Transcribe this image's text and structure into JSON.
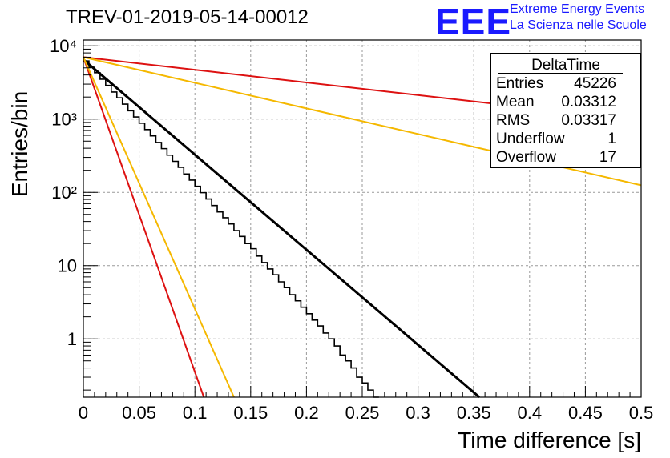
{
  "header": {
    "title": "TREV-01-2019-05-14-00012",
    "logo_text": "EEE",
    "brand_line1": "Extreme Energy Events",
    "brand_line2": "La Scienza nelle Scuole"
  },
  "stats": {
    "name": "DeltaTime",
    "rows": [
      {
        "label": "Entries",
        "value": "45226"
      },
      {
        "label": "Mean",
        "value": "0.03312"
      },
      {
        "label": "RMS",
        "value": "0.03317"
      },
      {
        "label": "Underflow",
        "value": "1"
      },
      {
        "label": "Overflow",
        "value": "17"
      }
    ]
  },
  "chart_data": {
    "type": "line",
    "title": "TREV-01-2019-05-14-00012",
    "xlabel": "Time difference [s]",
    "ylabel": "Entries/bin",
    "xlim": [
      0,
      0.5
    ],
    "ylim": [
      0.16,
      12000
    ],
    "yscale": "log",
    "grid": true,
    "x_ticks": [
      "0",
      "0.05",
      "0.1",
      "0.15",
      "0.2",
      "0.25",
      "0.3",
      "0.35",
      "0.4",
      "0.45",
      "0.5"
    ],
    "y_ticks": [
      {
        "value": 1,
        "label": "1"
      },
      {
        "value": 10,
        "label": "10"
      },
      {
        "value": 100,
        "label": "10²"
      },
      {
        "value": 1000,
        "label": "10³"
      },
      {
        "value": 10000,
        "label": "10⁴"
      }
    ],
    "histogram": {
      "name": "DeltaTime",
      "bin_width": 0.005,
      "x_start": 0,
      "values": [
        6200,
        5100,
        4300,
        3500,
        2880,
        2340,
        1950,
        1600,
        1300,
        1070,
        880,
        720,
        590,
        480,
        395,
        322,
        265,
        220,
        178,
        147,
        121,
        99,
        81,
        66,
        54,
        45,
        37,
        30,
        25,
        20,
        17,
        13.5,
        11,
        9,
        7.5,
        6,
        5,
        4,
        3.3,
        2.7,
        2.2,
        1.8,
        1.5,
        1.2,
        1,
        0.8,
        0.6,
        0.5,
        0.4,
        0.3,
        0.25,
        0.2,
        0.16
      ]
    },
    "series": [
      {
        "color": "#000000",
        "x": [
          0,
          0.355
        ],
        "y": [
          6500,
          0.16
        ]
      },
      {
        "color": "#dd1111",
        "x": [
          0,
          0.5
        ],
        "y": [
          7000,
          960
        ]
      },
      {
        "color": "#f5b800",
        "x": [
          0,
          0.5
        ],
        "y": [
          7000,
          125
        ]
      },
      {
        "color": "#dd1111",
        "x": [
          0,
          0.108
        ],
        "y": [
          7000,
          0.16
        ]
      },
      {
        "color": "#f5b800",
        "x": [
          0,
          0.135
        ],
        "y": [
          7000,
          0.16
        ]
      }
    ]
  }
}
